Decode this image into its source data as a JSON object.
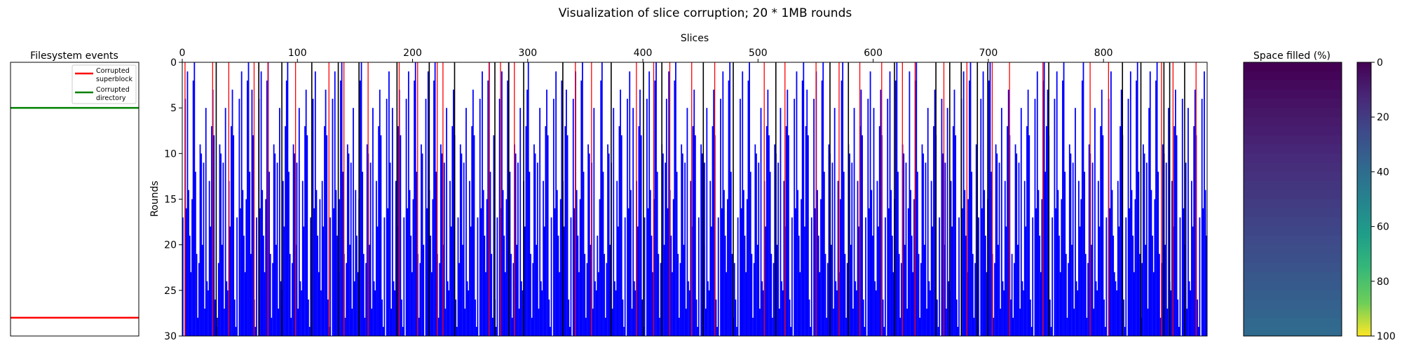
{
  "figure": {
    "suptitle": "Visualization of slice corruption; 20 * 1MB rounds"
  },
  "chart_data": [
    {
      "type": "line",
      "title": "Filesystem events",
      "ylim": [
        0,
        30
      ],
      "events": [
        {
          "name": "Corrupted superblock",
          "legend_lines": [
            "Corrupted",
            "superblock"
          ],
          "round": 28,
          "color": "#ff0000"
        },
        {
          "name": "Corrupted directory",
          "legend_lines": [
            "Corrupted",
            "directory"
          ],
          "round": 5,
          "color": "#008000"
        }
      ],
      "legend": "top-right"
    },
    {
      "type": "bar",
      "xlabel": "Slices",
      "ylabel": "Rounds",
      "xlim": [
        0,
        890
      ],
      "ylim": [
        30,
        0
      ],
      "xticks": [
        0,
        100,
        200,
        300,
        400,
        500,
        600,
        700,
        800
      ],
      "yticks": [
        0,
        5,
        10,
        15,
        20,
        25,
        30
      ],
      "colors": {
        "corrupted_from_round": "#0000ff",
        "red_slices": "#ff0000",
        "black_slices": "#000000"
      },
      "n_slices": 890,
      "sample_first_corrupted_round": [
        17,
        28,
        3,
        2,
        25,
        14,
        11,
        30,
        22,
        8,
        0,
        13,
        19,
        27,
        4,
        9,
        26,
        12,
        18,
        23,
        5,
        16,
        10,
        29,
        21,
        7,
        15,
        24,
        1,
        20
      ],
      "red_slice_sample": [
        2,
        26,
        40,
        62,
        66,
        74,
        98,
        127,
        140,
        161,
        188,
        204,
        221,
        226,
        266,
        276,
        288,
        341,
        355,
        394,
        409,
        423,
        442,
        462,
        505,
        523,
        550,
        570,
        588,
        607,
        625,
        636,
        661,
        681,
        703,
        718,
        747,
        788,
        804,
        850,
        860,
        880
      ],
      "black_slice_sample": [
        29,
        66,
        86,
        112,
        135,
        153,
        186,
        214,
        236,
        271,
        283,
        296,
        330,
        372,
        400,
        416,
        452,
        478,
        515,
        562,
        578,
        618,
        654,
        666,
        676,
        690,
        699,
        752,
        816,
        832,
        852,
        857,
        870
      ]
    },
    {
      "type": "heatmap",
      "title": "Space filled (%)",
      "values_percent_by_round": [
        0,
        1.3,
        2.7,
        4.0,
        5.3,
        6.7,
        8.0,
        9.3,
        10.7,
        12.0,
        13.3,
        14.7,
        16.0,
        17.3,
        18.7,
        20.0,
        21.3,
        22.7,
        24.0,
        25.3,
        26.7,
        28.0,
        29.3,
        30.7,
        32.0,
        33.3,
        34.7,
        36.0,
        37.3,
        38.7
      ],
      "colormap": "viridis_r",
      "colorbar_ticks": [
        0,
        20,
        40,
        60,
        80,
        100
      ]
    }
  ]
}
